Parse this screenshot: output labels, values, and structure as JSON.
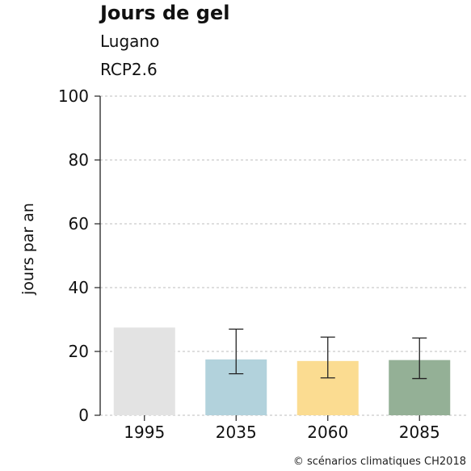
{
  "chart_data": {
    "type": "bar",
    "title": "Jours de gel",
    "subtitle": [
      "Lugano",
      "RCP2.6"
    ],
    "ylabel": "jours par an",
    "xlabel": "",
    "ylim": [
      0,
      100
    ],
    "yticks": [
      0,
      20,
      40,
      60,
      80,
      100
    ],
    "grid": true,
    "categories": [
      "1995",
      "2035",
      "2060",
      "2085"
    ],
    "values": [
      27.5,
      17.5,
      17,
      17.3
    ],
    "error_low": [
      null,
      13,
      11.7,
      11.5
    ],
    "error_high": [
      null,
      27,
      24.5,
      24.2
    ],
    "colors": [
      "#e3e3e3",
      "#b2d2dc",
      "#fbdc91",
      "#94b096"
    ]
  },
  "credit": "© scénarios climatiques CH2018"
}
